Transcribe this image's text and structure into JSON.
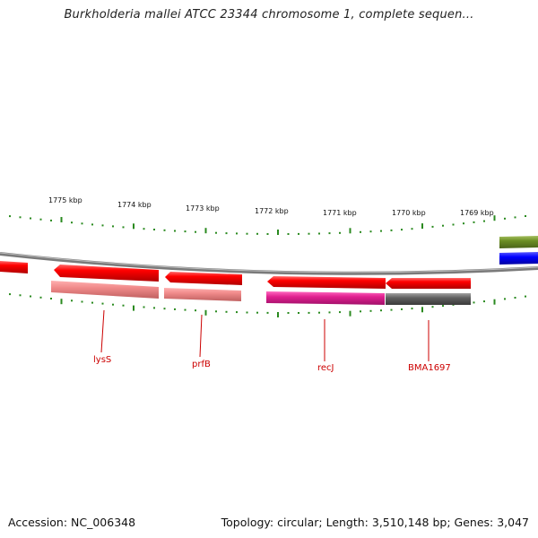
{
  "title": "Burkholderia mallei ATCC 23344 chromosome 1, complete sequen...",
  "footer": {
    "accession": "Accession: NC_006348",
    "stats": "Topology: circular; Length: 3,510,148 bp; Genes: 3,047"
  },
  "ruler": {
    "labels": [
      "1775 kbp",
      "1774 kbp",
      "1773 kbp",
      "1772 kbp",
      "1771 kbp",
      "1770 kbp",
      "1769 kbp"
    ],
    "tick_color": "#2a8a1f"
  },
  "genes": {
    "labels": [
      "lysS",
      "prfB",
      "recJ",
      "BMA1697"
    ],
    "label_color": "#cc0000"
  },
  "colors": {
    "cds": "#ff0000",
    "cds_light": "#f08080",
    "magenta": "#e0208f",
    "gray_feature": "#606060",
    "green_feature": "#6b8e23",
    "blue_feature": "#0000ff",
    "backbone": "#808080"
  }
}
